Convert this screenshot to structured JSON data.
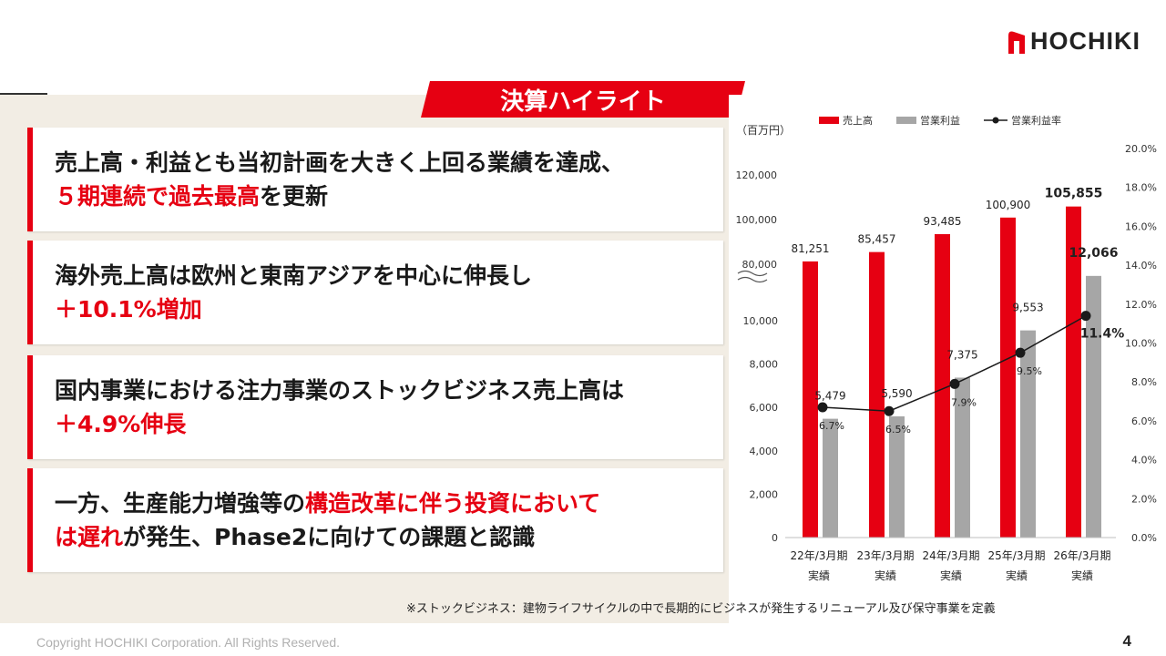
{
  "brand": {
    "name": "HOCHIKI"
  },
  "banner": {
    "title": "決算ハイライト"
  },
  "highlights": [
    {
      "line1": [
        {
          "text": "売上高・利益とも当初計画を大きく上回る業績を達成、",
          "red": false
        }
      ],
      "line2": [
        {
          "text": "５期連続で過去最高",
          "red": true
        },
        {
          "text": "を更新",
          "red": false
        }
      ]
    },
    {
      "line1": [
        {
          "text": "海外売上高は欧州と東南アジアを中心に伸長し",
          "red": false
        }
      ],
      "line2": [
        {
          "text": "＋10.1%増加",
          "red": true
        }
      ]
    },
    {
      "line1": [
        {
          "text": "国内事業における注力事業のストックビジネス売上高は",
          "red": false
        }
      ],
      "line2": [
        {
          "text": "＋4.9%伸長",
          "red": true
        }
      ]
    },
    {
      "line1": [
        {
          "text": "一方、生産能力増強等の",
          "red": false
        },
        {
          "text": "構造改革に伴う投資において",
          "red": true
        }
      ],
      "line2": [
        {
          "text": "は遅れ",
          "red": true
        },
        {
          "text": "が発生、Phase2に向けての課題と認識",
          "red": false
        }
      ]
    }
  ],
  "chart_data": {
    "type": "bar",
    "unit_label": "（百万円）",
    "categories": [
      "22年/3月期 実績",
      "23年/3月期 実績",
      "24年/3月期 実績",
      "25年/3月期 実績",
      "26年/3月期 実績"
    ],
    "category_lines": [
      [
        "22年/3月期",
        "実績"
      ],
      [
        "23年/3月期",
        "実績"
      ],
      [
        "24年/3月期",
        "実績"
      ],
      [
        "25年/3月期",
        "実績"
      ],
      [
        "26年/3月期",
        "実績"
      ]
    ],
    "legend_position": "top",
    "series": [
      {
        "name": "売上高",
        "type": "bar",
        "color": "#e60012",
        "axis": "left-upper",
        "values": [
          81251,
          85457,
          93485,
          100900,
          105855
        ],
        "labels": [
          "81,251",
          "85,457",
          "93,485",
          "100,900",
          "105,855"
        ]
      },
      {
        "name": "営業利益",
        "type": "bar",
        "color": "#a6a6a6",
        "axis": "left-lower",
        "values": [
          5479,
          5590,
          7375,
          9553,
          12066
        ],
        "labels": [
          "5,479",
          "5,590",
          "7,375",
          "9,553",
          "12,066"
        ]
      },
      {
        "name": "営業利益率",
        "type": "line",
        "color": "#1a1a1a",
        "axis": "right",
        "values": [
          6.7,
          6.5,
          7.9,
          9.5,
          11.4
        ],
        "labels": [
          "6.7%",
          "6.5%",
          "7.9%",
          "9.5%",
          "11.4%"
        ]
      }
    ],
    "y_left_upper_ticks": [
      "80,000",
      "100,000",
      "120,000"
    ],
    "y_left_upper_range": [
      80000,
      120000
    ],
    "y_left_lower_ticks": [
      "0",
      "2,000",
      "4,000",
      "6,000",
      "8,000",
      "10,000"
    ],
    "y_left_lower_range": [
      0,
      10000
    ],
    "y_right_ticks": [
      "0.0%",
      "2.0%",
      "4.0%",
      "6.0%",
      "8.0%",
      "10.0%",
      "12.0%",
      "14.0%",
      "16.0%",
      "18.0%",
      "20.0%"
    ],
    "y_right_range": [
      0,
      20
    ],
    "axis_break": true
  },
  "footnote": "※ストックビジネス：建物ライフサイクルの中で長期的にビジネスが発生するリニューアル及び保守事業を定義",
  "footer": {
    "copyright": "Copyright HOCHIKI Corporation. All Rights Reserved.",
    "page": "4"
  }
}
